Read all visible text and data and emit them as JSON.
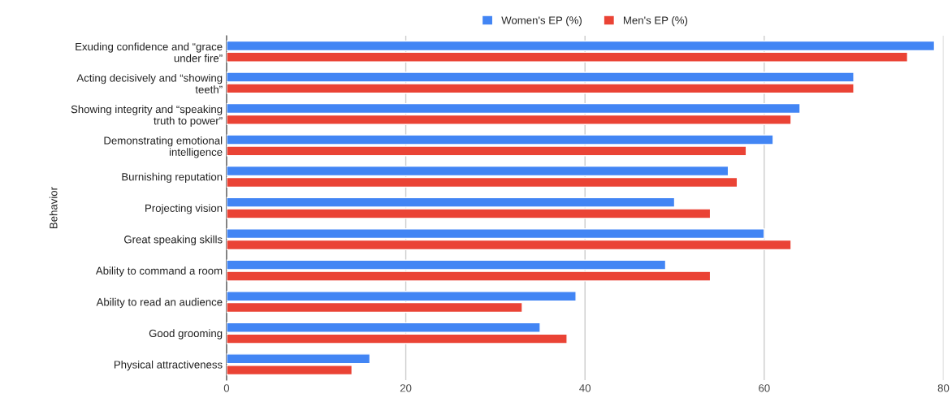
{
  "chart_data": {
    "type": "bar",
    "orientation": "horizontal",
    "ylabel": "Behavior",
    "categories": [
      "Exuding confidence and “grace\nunder fire”",
      "Acting decisively and “showing\nteeth”",
      "Showing integrity and “speaking\ntruth to power”",
      "Demonstrating emotional\nintelligence",
      "Burnishing reputation",
      "Projecting vision",
      "Great speaking skills",
      "Ability to command a room",
      "Ability to read an audience",
      "Good grooming",
      "Physical attractiveness"
    ],
    "series": [
      {
        "name": "Women's EP (%)",
        "color": "#4285f4",
        "values": [
          79,
          70,
          64,
          61,
          56,
          50,
          60,
          49,
          39,
          35,
          16
        ]
      },
      {
        "name": "Men's EP (%)",
        "color": "#ea4335",
        "values": [
          76,
          70,
          63,
          58,
          57,
          54,
          63,
          54,
          33,
          38,
          14
        ]
      }
    ],
    "xlim": [
      0,
      80
    ],
    "xticks": [
      0,
      20,
      40,
      60,
      80
    ],
    "grid": "x",
    "legend": "top"
  }
}
